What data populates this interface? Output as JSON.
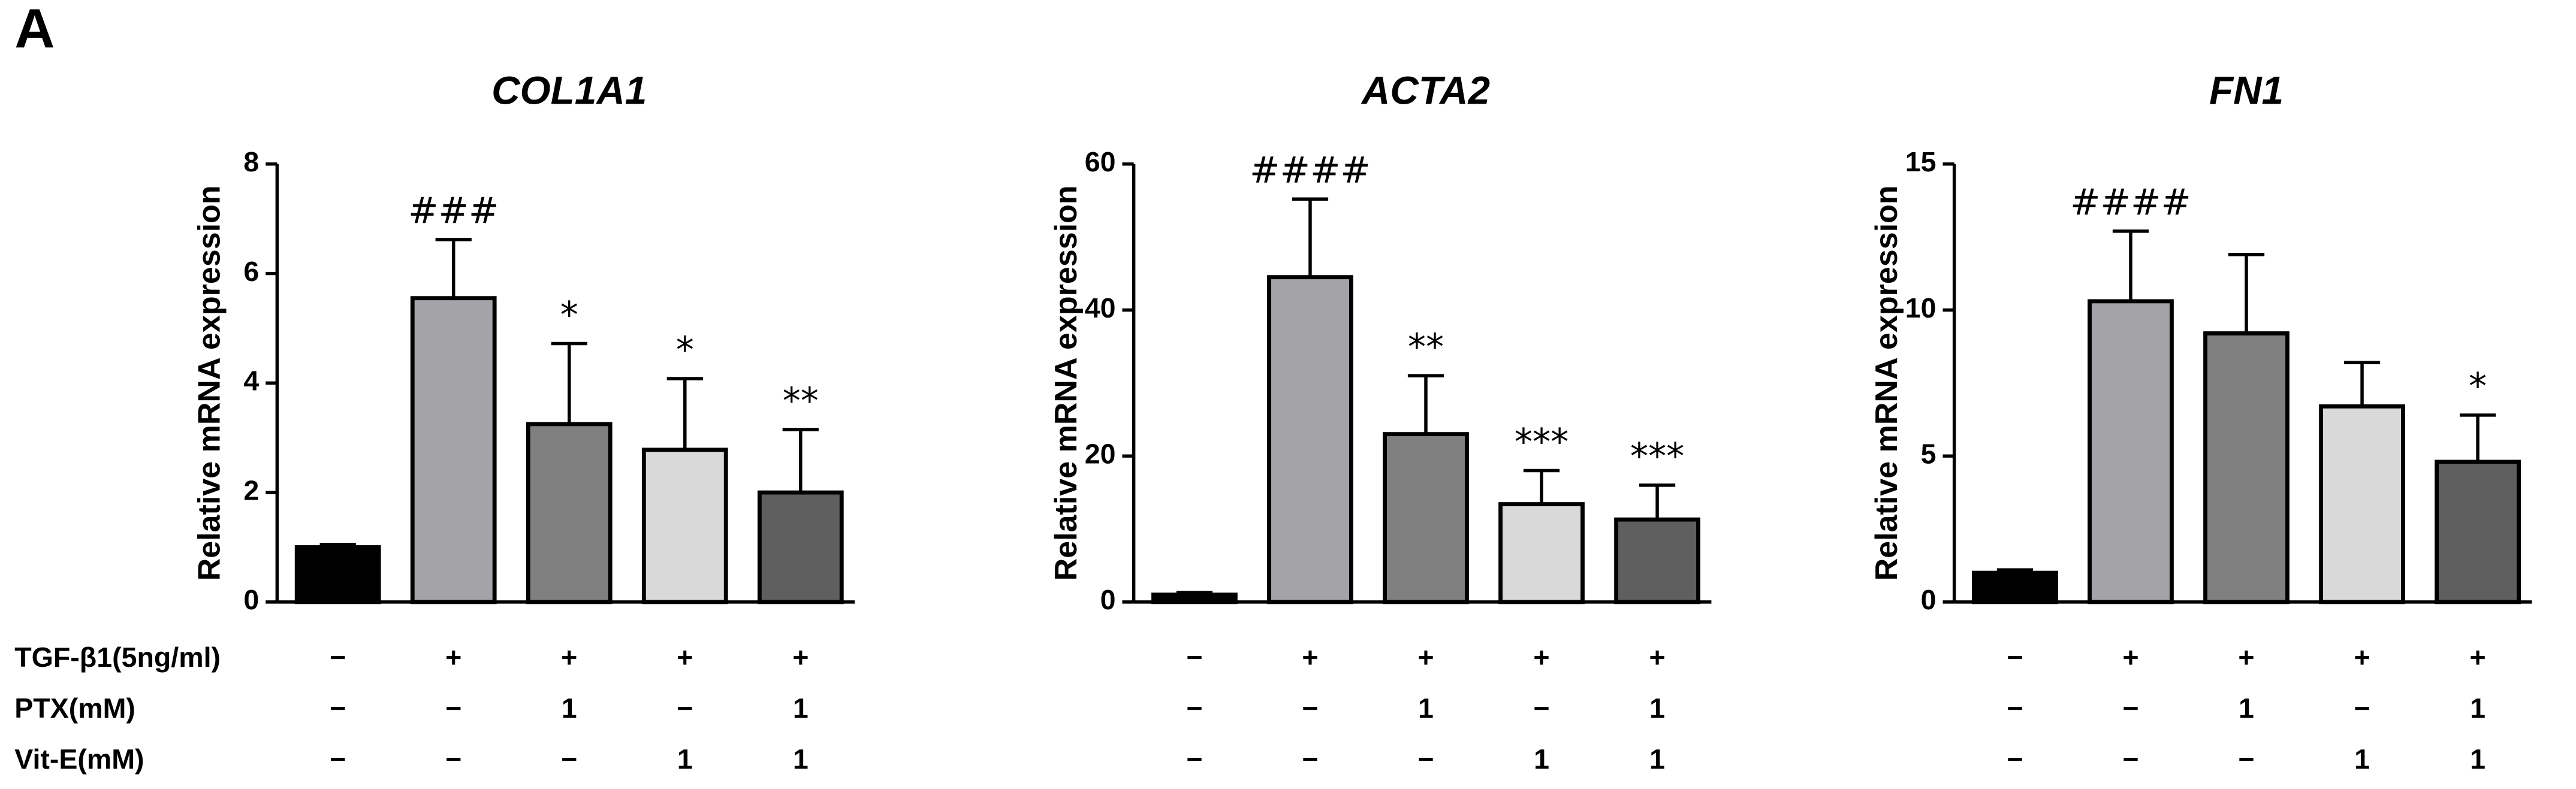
{
  "panel_label": "A",
  "chart_data": [
    {
      "type": "bar",
      "title": "COL1A1",
      "y_label": "Relative mRNA expression",
      "values": [
        1.0,
        5.55,
        3.25,
        2.78,
        2.0
      ],
      "errors": [
        0.05,
        1.07,
        1.47,
        1.3,
        1.15
      ],
      "annotations": [
        null,
        "###",
        "*",
        "*",
        "**"
      ],
      "colors": [
        "#000000",
        "#a3a3a8",
        "#808080",
        "#d9d9d9",
        "#5f5f5f"
      ],
      "ylim": [
        0,
        8
      ],
      "yticks": [
        0,
        2,
        4,
        6,
        8
      ]
    },
    {
      "type": "bar",
      "title": "ACTA2",
      "y_label": "Relative mRNA expression",
      "values": [
        1.0,
        44.5,
        23,
        13.4,
        11.3
      ],
      "errors": [
        0.3,
        10.7,
        8,
        4.6,
        4.7
      ],
      "annotations": [
        null,
        "####",
        "**",
        "***",
        "***"
      ],
      "colors": [
        "#000000",
        "#a3a3a8",
        "#808080",
        "#d9d9d9",
        "#5f5f5f"
      ],
      "ylim": [
        0,
        60
      ],
      "yticks": [
        0,
        20,
        40,
        60
      ]
    },
    {
      "type": "bar",
      "title": "FN1",
      "y_label": "Relative mRNA expression",
      "values": [
        1.0,
        10.3,
        9.2,
        6.7,
        4.8
      ],
      "errors": [
        0.1,
        2.4,
        2.7,
        1.5,
        1.6
      ],
      "annotations": [
        null,
        "####",
        null,
        null,
        "*"
      ],
      "colors": [
        "#000000",
        "#a3a3a8",
        "#808080",
        "#d9d9d9",
        "#5f5f5f"
      ],
      "ylim": [
        0,
        15
      ],
      "yticks": [
        0,
        5,
        10,
        15
      ]
    }
  ],
  "treatments": {
    "rows": [
      {
        "label": "TGF-β1(5ng/ml)",
        "cells": [
          "−",
          "+",
          "+",
          "+",
          "+"
        ]
      },
      {
        "label": "PTX(mM)",
        "cells": [
          "−",
          "−",
          "1",
          "−",
          "1"
        ]
      },
      {
        "label": "Vit-E(mM)",
        "cells": [
          "−",
          "−",
          "−",
          "1",
          "1"
        ]
      }
    ]
  }
}
